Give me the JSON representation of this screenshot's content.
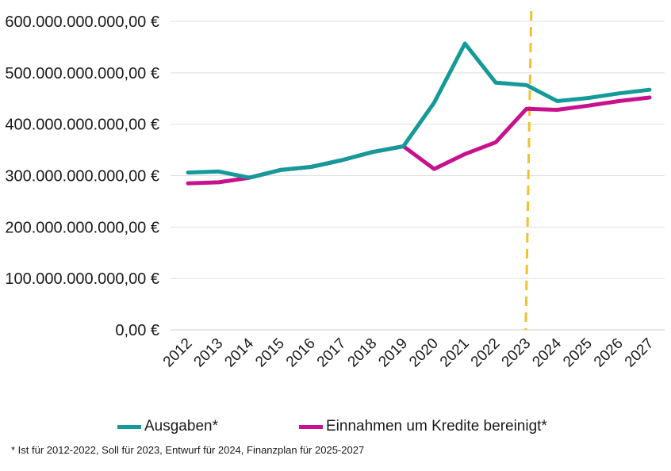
{
  "chart_data": {
    "type": "line",
    "categories": [
      "2012",
      "2013",
      "2014",
      "2015",
      "2016",
      "2017",
      "2018",
      "2019",
      "2020",
      "2021",
      "2022",
      "2023",
      "2024",
      "2025",
      "2026",
      "2027"
    ],
    "series": [
      {
        "name": "Ausgaben*",
        "color": "#139a99",
        "values": [
          306000000000,
          308000000000,
          296000000000,
          311000000000,
          317000000000,
          330000000000,
          346000000000,
          357000000000,
          442000000000,
          557000000000,
          481000000000,
          476000000000,
          445000000000,
          451000000000,
          460000000000,
          467000000000
        ]
      },
      {
        "name": "Einnahmen um Kredite bereinigt*",
        "color": "#c8118c",
        "values": [
          285000000000,
          287000000000,
          296000000000,
          311000000000,
          317000000000,
          330000000000,
          346000000000,
          357000000000,
          313000000000,
          342000000000,
          365000000000,
          430000000000,
          428000000000,
          436000000000,
          445000000000,
          452000000000
        ]
      }
    ],
    "yticks": [
      "0,00 €",
      "100.000.000.000,00 €",
      "200.000.000.000,00 €",
      "300.000.000.000,00 €",
      "400.000.000.000,00 €",
      "500.000.000.000,00 €",
      "600.000.000.000,00 €"
    ],
    "ylim": [
      0,
      600000000000
    ],
    "grid": true,
    "marker_line": {
      "category": "2023",
      "color": "#f2c12e",
      "style": "dashed"
    },
    "legend_position": "bottom"
  },
  "footnote": "* Ist für 2012-2022, Soll für 2023, Entwurf für 2024, Finanzplan für 2025-2027"
}
